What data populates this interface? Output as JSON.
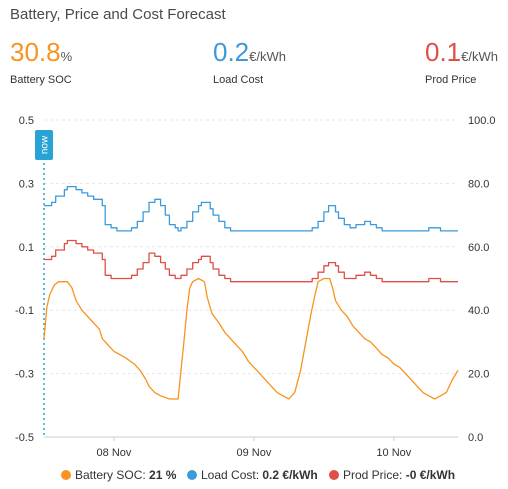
{
  "header": {
    "title": "Battery, Price and Cost Forecast"
  },
  "stats": {
    "soc": {
      "value": "30.8",
      "unit": "%",
      "label": "Battery SOC"
    },
    "load": {
      "value": "0.2",
      "unit": "€/kWh",
      "label": "Load Cost"
    },
    "prod": {
      "value": "0.1",
      "unit": "€/kWh",
      "label": "Prod Price"
    }
  },
  "colors": {
    "soc": "#f7931e",
    "load": "#3d9ad8",
    "prod": "#e04f45",
    "now": "#29a3d6",
    "grid": "#e6e6e6"
  },
  "now_label": "now",
  "chart_data": {
    "type": "line",
    "x_tick_labels": [
      "08 Nov",
      "09 Nov",
      "10 Nov"
    ],
    "y_left": {
      "range": [
        -0.5,
        0.5
      ],
      "ticks": [
        "0.5",
        "0.3",
        "0.1",
        "-0.1",
        "-0.3",
        "-0.5"
      ]
    },
    "y_right": {
      "range": [
        0,
        100
      ],
      "ticks": [
        "100.0",
        "80.0",
        "60.0",
        "40.0",
        "20.0",
        "0.0"
      ]
    },
    "x_range_hours": [
      0,
      71
    ],
    "x_tick_hours": [
      12,
      36,
      60
    ],
    "now_hour": 0,
    "grid": true,
    "legend": {
      "position": "bottom",
      "items": [
        {
          "name": "Battery SOC",
          "value": "21 %"
        },
        {
          "name": "Load Cost",
          "value": "0.2 €/kWh"
        },
        {
          "name": "Prod Price",
          "value": "-0 €/kWh"
        }
      ]
    },
    "series": [
      {
        "name": "Load Cost",
        "axis": "left",
        "step": true,
        "points": [
          [
            0,
            0.23
          ],
          [
            1.3,
            0.24
          ],
          [
            2,
            0.26
          ],
          [
            3.5,
            0.28
          ],
          [
            4,
            0.29
          ],
          [
            5.5,
            0.28
          ],
          [
            6.5,
            0.27
          ],
          [
            7.5,
            0.26
          ],
          [
            8.5,
            0.25
          ],
          [
            10,
            0.23
          ],
          [
            10.5,
            0.17
          ],
          [
            11.5,
            0.16
          ],
          [
            12.5,
            0.15
          ],
          [
            13,
            0.15
          ],
          [
            14.5,
            0.15
          ],
          [
            15,
            0.16
          ],
          [
            16,
            0.18
          ],
          [
            17,
            0.21
          ],
          [
            18,
            0.24
          ],
          [
            19,
            0.25
          ],
          [
            20,
            0.23
          ],
          [
            20.8,
            0.2
          ],
          [
            21.5,
            0.17
          ],
          [
            22.5,
            0.16
          ],
          [
            23,
            0.15
          ],
          [
            23.5,
            0.16
          ],
          [
            24.5,
            0.18
          ],
          [
            25.5,
            0.21
          ],
          [
            26.5,
            0.23
          ],
          [
            27,
            0.24
          ],
          [
            28.5,
            0.22
          ],
          [
            29,
            0.2
          ],
          [
            30,
            0.18
          ],
          [
            31,
            0.16
          ],
          [
            32,
            0.15
          ],
          [
            34,
            0.15
          ],
          [
            36,
            0.15
          ],
          [
            42,
            0.15
          ],
          [
            45,
            0.15
          ],
          [
            46,
            0.16
          ],
          [
            47,
            0.18
          ],
          [
            48,
            0.21
          ],
          [
            48.8,
            0.23
          ],
          [
            50,
            0.21
          ],
          [
            50.5,
            0.19
          ],
          [
            51.5,
            0.17
          ],
          [
            52.5,
            0.16
          ],
          [
            53.5,
            0.17
          ],
          [
            55,
            0.18
          ],
          [
            56,
            0.17
          ],
          [
            57,
            0.16
          ],
          [
            58,
            0.15
          ],
          [
            64,
            0.15
          ],
          [
            66,
            0.16
          ],
          [
            68,
            0.15
          ],
          [
            70,
            0.15
          ],
          [
            71,
            0.15
          ]
        ]
      },
      {
        "name": "Prod Price",
        "axis": "left",
        "step": true,
        "points": [
          [
            0,
            0.06
          ],
          [
            1.3,
            0.07
          ],
          [
            2,
            0.09
          ],
          [
            3.5,
            0.11
          ],
          [
            4,
            0.12
          ],
          [
            5.5,
            0.11
          ],
          [
            6.5,
            0.1
          ],
          [
            7.5,
            0.09
          ],
          [
            8.5,
            0.08
          ],
          [
            10,
            0.06
          ],
          [
            10.5,
            0.01
          ],
          [
            11.5,
            0.0
          ],
          [
            12.5,
            0.0
          ],
          [
            14.5,
            0.0
          ],
          [
            15,
            0.01
          ],
          [
            16,
            0.03
          ],
          [
            17,
            0.05
          ],
          [
            18,
            0.08
          ],
          [
            19,
            0.07
          ],
          [
            20,
            0.05
          ],
          [
            20.8,
            0.03
          ],
          [
            21.5,
            0.01
          ],
          [
            22.5,
            0.0
          ],
          [
            23,
            0.0
          ],
          [
            23.5,
            0.01
          ],
          [
            24.5,
            0.03
          ],
          [
            25.5,
            0.05
          ],
          [
            26.5,
            0.06
          ],
          [
            27,
            0.07
          ],
          [
            28.5,
            0.05
          ],
          [
            29,
            0.03
          ],
          [
            30,
            0.01
          ],
          [
            31,
            0.0
          ],
          [
            32,
            -0.01
          ],
          [
            36,
            -0.01
          ],
          [
            45,
            -0.01
          ],
          [
            46,
            0.0
          ],
          [
            47,
            0.02
          ],
          [
            48,
            0.04
          ],
          [
            48.8,
            0.05
          ],
          [
            50,
            0.04
          ],
          [
            50.5,
            0.02
          ],
          [
            51.5,
            0.0
          ],
          [
            52.5,
            0.0
          ],
          [
            53.5,
            0.01
          ],
          [
            55,
            0.02
          ],
          [
            56,
            0.01
          ],
          [
            57,
            0.0
          ],
          [
            58,
            -0.01
          ],
          [
            64,
            -0.01
          ],
          [
            66,
            0.0
          ],
          [
            68,
            -0.01
          ],
          [
            70,
            -0.01
          ],
          [
            71,
            -0.01
          ]
        ]
      },
      {
        "name": "Battery SOC",
        "axis": "right",
        "step": false,
        "points": [
          [
            0,
            31
          ],
          [
            0.5,
            41
          ],
          [
            1,
            45
          ],
          [
            1.8,
            48
          ],
          [
            2.5,
            49
          ],
          [
            4,
            49
          ],
          [
            4.8,
            47
          ],
          [
            5.5,
            43
          ],
          [
            6.5,
            40
          ],
          [
            7.5,
            38
          ],
          [
            8.5,
            36
          ],
          [
            9.5,
            34
          ],
          [
            10,
            31
          ],
          [
            11,
            29
          ],
          [
            12,
            27
          ],
          [
            13,
            26
          ],
          [
            14,
            25
          ],
          [
            15.5,
            23
          ],
          [
            16.5,
            21
          ],
          [
            17.5,
            18
          ],
          [
            18,
            16
          ],
          [
            19,
            14
          ],
          [
            20,
            13
          ],
          [
            21.5,
            12
          ],
          [
            23,
            12
          ],
          [
            24,
            30
          ],
          [
            24.5,
            40
          ],
          [
            25,
            47
          ],
          [
            25.5,
            49
          ],
          [
            26.5,
            50
          ],
          [
            27.5,
            49
          ],
          [
            28,
            44
          ],
          [
            28.8,
            39
          ],
          [
            30,
            36
          ],
          [
            31,
            33
          ],
          [
            32,
            31
          ],
          [
            33,
            29
          ],
          [
            34,
            27
          ],
          [
            35,
            24
          ],
          [
            36,
            22
          ],
          [
            37,
            20
          ],
          [
            38,
            18
          ],
          [
            39,
            16
          ],
          [
            40,
            14
          ],
          [
            41,
            13
          ],
          [
            42,
            12
          ],
          [
            43,
            14
          ],
          [
            44,
            21
          ],
          [
            45,
            31
          ],
          [
            45.8,
            39
          ],
          [
            46.5,
            45
          ],
          [
            47,
            49
          ],
          [
            48,
            50
          ],
          [
            49,
            50
          ],
          [
            49.5,
            47
          ],
          [
            50,
            43
          ],
          [
            51,
            40
          ],
          [
            52,
            38
          ],
          [
            53,
            35
          ],
          [
            54,
            33
          ],
          [
            55,
            31
          ],
          [
            56,
            30
          ],
          [
            57,
            28
          ],
          [
            58,
            26
          ],
          [
            59,
            25
          ],
          [
            60,
            23
          ],
          [
            61,
            22
          ],
          [
            62,
            20
          ],
          [
            63,
            18
          ],
          [
            64,
            16
          ],
          [
            65,
            14
          ],
          [
            66,
            13
          ],
          [
            67,
            12
          ],
          [
            68,
            13
          ],
          [
            69,
            14
          ],
          [
            70,
            18
          ],
          [
            71,
            21
          ]
        ]
      }
    ]
  }
}
